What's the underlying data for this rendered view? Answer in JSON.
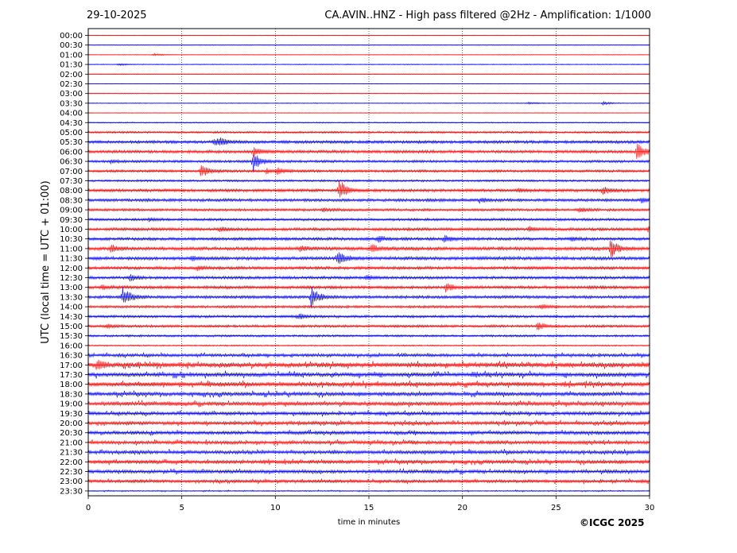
{
  "header": {
    "date": "29-10-2025",
    "title": "CA.AVIN..HNZ - High pass filtered @2Hz - Amplification: 1/1000"
  },
  "footer": {
    "copyright": "©ICGC 2025"
  },
  "chart_data": {
    "type": "line",
    "title": "CA.AVIN..HNZ - High pass filtered @2Hz - Amplification: 1/1000",
    "xlabel": "time in minutes",
    "ylabel": "UTC (local time = UTC + 01:00)",
    "xlim": [
      0,
      30
    ],
    "xticks": [
      0,
      5,
      10,
      15,
      20,
      25,
      30
    ],
    "grid": "vertical dotted lines at 5-minute ticks",
    "row_labels": [
      "00:00",
      "00:30",
      "01:00",
      "01:30",
      "02:00",
      "02:30",
      "03:00",
      "03:30",
      "04:00",
      "04:30",
      "05:00",
      "05:30",
      "06:00",
      "06:30",
      "07:00",
      "07:30",
      "08:00",
      "08:30",
      "09:00",
      "09:30",
      "10:00",
      "10:30",
      "11:00",
      "11:30",
      "12:00",
      "12:30",
      "13:00",
      "13:30",
      "14:00",
      "14:30",
      "15:00",
      "15:30",
      "16:00",
      "16:30",
      "17:00",
      "17:30",
      "18:00",
      "18:30",
      "19:00",
      "19:30",
      "20:00",
      "20:30",
      "21:00",
      "21:30",
      "22:00",
      "22:30",
      "23:00",
      "23:30"
    ],
    "series_colors": [
      "#0000ff",
      "#ff0000"
    ],
    "color_pattern": "rows alternate red (hh:00) and blue (hh:30)",
    "noise_levels": [
      0.3,
      0.3,
      0.3,
      0.4,
      0.3,
      0.3,
      0.3,
      0.4,
      0.3,
      0.5,
      1.0,
      1.4,
      1.4,
      1.2,
      1.2,
      1.0,
      1.4,
      1.4,
      1.2,
      1.2,
      1.4,
      1.4,
      1.6,
      1.6,
      1.4,
      1.4,
      1.4,
      1.4,
      1.2,
      1.2,
      1.2,
      1.0,
      0.6,
      1.4,
      2.2,
      2.0,
      2.0,
      1.8,
      1.8,
      1.6,
      1.6,
      1.6,
      1.6,
      1.6,
      1.6,
      1.6,
      1.4,
      0.5
    ],
    "events": [
      {
        "row": "01:00",
        "t": 3.5,
        "amp": 1.5
      },
      {
        "row": "01:30",
        "t": 1.6,
        "amp": 1.2
      },
      {
        "row": "03:30",
        "t": 23.5,
        "amp": 1.5
      },
      {
        "row": "03:30",
        "t": 27.5,
        "amp": 2.2
      },
      {
        "row": "05:30",
        "t": 6.7,
        "amp": 5
      },
      {
        "row": "05:30",
        "t": 7.0,
        "amp": 4
      },
      {
        "row": "06:00",
        "t": 29.3,
        "amp": 13
      },
      {
        "row": "06:00",
        "t": 8.8,
        "amp": 7
      },
      {
        "row": "06:30",
        "t": 8.8,
        "amp": 14
      },
      {
        "row": "06:30",
        "t": 1.2,
        "amp": 2
      },
      {
        "row": "07:00",
        "t": 6.0,
        "amp": 9
      },
      {
        "row": "07:00",
        "t": 10.1,
        "amp": 4
      },
      {
        "row": "07:00",
        "t": 9.5,
        "amp": 3
      },
      {
        "row": "08:00",
        "t": 13.4,
        "amp": 15
      },
      {
        "row": "08:00",
        "t": 27.5,
        "amp": 5
      },
      {
        "row": "08:00",
        "t": 23.0,
        "amp": 2.5
      },
      {
        "row": "08:30",
        "t": 29.5,
        "amp": 4
      },
      {
        "row": "08:30",
        "t": 20.9,
        "amp": 3
      },
      {
        "row": "09:00",
        "t": 12.5,
        "amp": 3
      },
      {
        "row": "09:00",
        "t": 26.2,
        "amp": 3
      },
      {
        "row": "09:30",
        "t": 3.2,
        "amp": 3
      },
      {
        "row": "10:00",
        "t": 23.5,
        "amp": 4
      },
      {
        "row": "10:00",
        "t": 7.0,
        "amp": 3
      },
      {
        "row": "10:00",
        "t": 29.9,
        "amp": 4
      },
      {
        "row": "10:30",
        "t": 15.5,
        "amp": 4
      },
      {
        "row": "10:30",
        "t": 19.0,
        "amp": 5
      },
      {
        "row": "10:30",
        "t": 25.8,
        "amp": 3
      },
      {
        "row": "11:00",
        "t": 27.9,
        "amp": 13
      },
      {
        "row": "11:00",
        "t": 1.2,
        "amp": 5
      },
      {
        "row": "11:00",
        "t": 11.3,
        "amp": 3
      },
      {
        "row": "11:00",
        "t": 15.1,
        "amp": 6
      },
      {
        "row": "11:30",
        "t": 13.3,
        "amp": 10
      },
      {
        "row": "11:30",
        "t": 5.5,
        "amp": 3
      },
      {
        "row": "12:00",
        "t": 5.8,
        "amp": 3
      },
      {
        "row": "12:30",
        "t": 2.2,
        "amp": 4
      },
      {
        "row": "12:30",
        "t": 14.8,
        "amp": 3
      },
      {
        "row": "13:00",
        "t": 19.1,
        "amp": 6
      },
      {
        "row": "13:00",
        "t": 0.7,
        "amp": 3
      },
      {
        "row": "13:30",
        "t": 1.8,
        "amp": 16
      },
      {
        "row": "13:30",
        "t": 11.9,
        "amp": 14
      },
      {
        "row": "14:00",
        "t": 24.2,
        "amp": 3
      },
      {
        "row": "14:30",
        "t": 11.2,
        "amp": 4
      },
      {
        "row": "15:00",
        "t": 24.0,
        "amp": 5
      },
      {
        "row": "15:00",
        "t": 1.0,
        "amp": 3
      },
      {
        "row": "17:00",
        "t": 0.5,
        "amp": 5
      },
      {
        "row": "17:30",
        "t": 20.5,
        "amp": 3
      }
    ]
  }
}
